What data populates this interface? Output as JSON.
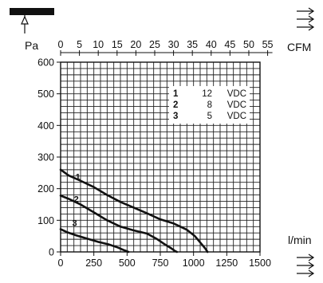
{
  "chart_data": {
    "type": "line",
    "y_unit": "Pa",
    "x_unit": "l/min",
    "x_top_unit": "CFM",
    "x_ticks": [
      0,
      250,
      500,
      750,
      1000,
      1250,
      1500
    ],
    "x_tick_labels": [
      "0",
      "250",
      "500",
      "750",
      "1000",
      "1250",
      "1500"
    ],
    "x_top_ticks": [
      0,
      5,
      10,
      15,
      20,
      25,
      30,
      35,
      40,
      45,
      50,
      55
    ],
    "x_top_tick_labels": [
      "0",
      "5",
      "10",
      "15",
      "20",
      "25",
      "30",
      "35",
      "40",
      "45",
      "50",
      "55"
    ],
    "y_ticks": [
      0,
      100,
      200,
      300,
      400,
      500,
      600
    ],
    "y_tick_labels": [
      "0",
      "100",
      "200",
      "300",
      "400",
      "500",
      "600"
    ],
    "xlim": [
      0,
      1500
    ],
    "ylim": [
      0,
      600
    ],
    "grid": true,
    "legend_position": "top-right",
    "legend": [
      {
        "id": "1",
        "value": "12",
        "unit": "VDC"
      },
      {
        "id": "2",
        "value": "8",
        "unit": "VDC"
      },
      {
        "id": "3",
        "value": "5",
        "unit": "VDC"
      }
    ],
    "series": [
      {
        "label": "1",
        "x": [
          0,
          60,
          150,
          250,
          350,
          450,
          550,
          650,
          750,
          850,
          950,
          1010,
          1060,
          1090,
          1105
        ],
        "y": [
          260,
          242,
          225,
          205,
          180,
          158,
          140,
          122,
          103,
          90,
          70,
          50,
          25,
          10,
          0
        ]
      },
      {
        "label": "2",
        "x": [
          0,
          60,
          150,
          250,
          350,
          450,
          550,
          650,
          720,
          780,
          830,
          860,
          875
        ],
        "y": [
          178,
          168,
          150,
          125,
          100,
          80,
          68,
          58,
          42,
          25,
          12,
          3,
          0
        ]
      },
      {
        "label": "3",
        "x": [
          0,
          50,
          120,
          200,
          280,
          360,
          430,
          480,
          510
        ],
        "y": [
          72,
          62,
          52,
          42,
          32,
          24,
          14,
          5,
          0
        ]
      }
    ]
  }
}
